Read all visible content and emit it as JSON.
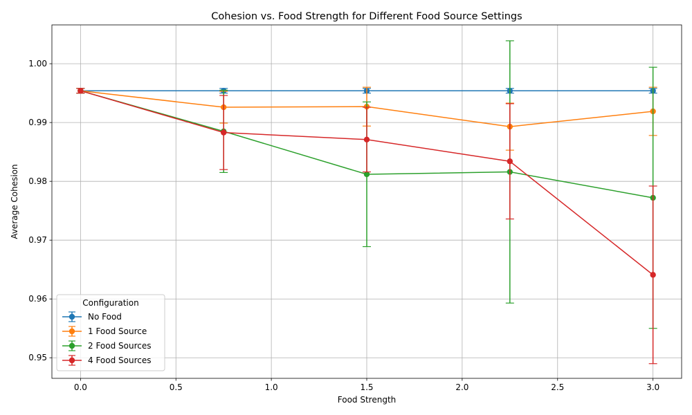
{
  "chart_data": {
    "type": "line",
    "title": "Cohesion vs. Food Strength for Different Food Source Settings",
    "xlabel": "Food Strength",
    "ylabel": "Average Cohesion",
    "xlim": [
      -0.15,
      3.15
    ],
    "ylim": [
      0.9465,
      1.0066
    ],
    "xticks": [
      0.0,
      0.5,
      1.0,
      1.5,
      2.0,
      2.5,
      3.0
    ],
    "xtick_labels": [
      "0.0",
      "0.5",
      "1.0",
      "1.5",
      "2.0",
      "2.5",
      "3.0"
    ],
    "yticks": [
      0.95,
      0.96,
      0.97,
      0.98,
      0.99,
      1.0
    ],
    "ytick_labels": [
      "0.95",
      "0.96",
      "0.97",
      "0.98",
      "0.99",
      "1.00"
    ],
    "grid": true,
    "legend_title": "Configuration",
    "legend_position": "lower-left",
    "x": [
      0.0,
      0.75,
      1.5,
      2.25,
      3.0
    ],
    "series": [
      {
        "name": "No Food",
        "color": "#1f77b4",
        "values": [
          0.9954,
          0.9954,
          0.9954,
          0.9954,
          0.9954
        ],
        "errors": [
          0.0004,
          0.0004,
          0.0004,
          0.0004,
          0.0004
        ]
      },
      {
        "name": "1 Food Source",
        "color": "#ff7f0e",
        "values": [
          0.9954,
          0.9926,
          0.9927,
          0.9893,
          0.9919
        ],
        "errors": [
          0.0004,
          0.0027,
          0.0033,
          0.004,
          0.0041
        ]
      },
      {
        "name": "2 Food Sources",
        "color": "#2ca02c",
        "values": [
          0.9954,
          0.9885,
          0.9812,
          0.9816,
          0.9772
        ],
        "errors": [
          0.0004,
          0.007,
          0.0123,
          0.0223,
          0.0222
        ]
      },
      {
        "name": "4 Food Sources",
        "color": "#d62728",
        "values": [
          0.9954,
          0.9883,
          0.9871,
          0.9834,
          0.9641
        ],
        "errors": [
          0.0004,
          0.0063,
          0.0055,
          0.0098,
          0.0151
        ]
      }
    ]
  }
}
